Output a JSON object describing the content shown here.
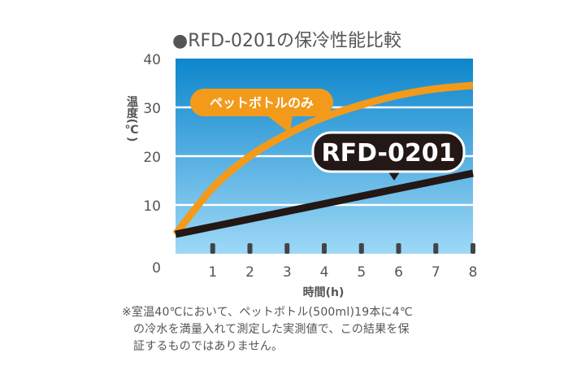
{
  "chart_data": {
    "type": "line",
    "title": "●RFD-0201の保冷性能比較",
    "xlabel": "時間(h)",
    "ylabel": "温度(℃)",
    "xlim": [
      0,
      8
    ],
    "ylim": [
      0,
      40
    ],
    "x_ticks": [
      "1",
      "2",
      "3",
      "4",
      "5",
      "6",
      "7",
      "8"
    ],
    "y_ticks": [
      "0",
      "10",
      "20",
      "30",
      "40"
    ],
    "grid": true,
    "series": [
      {
        "name": "ペットボトルのみ",
        "color": "#F39A1B",
        "x": [
          0,
          1,
          2,
          3,
          4,
          5,
          6,
          7,
          8
        ],
        "y": [
          4,
          13.5,
          20,
          24.5,
          28,
          30.5,
          32.5,
          33.8,
          34.5
        ]
      },
      {
        "name": "RFD-0201",
        "color": "#231815",
        "x": [
          0,
          8
        ],
        "y": [
          4,
          16.5
        ]
      }
    ],
    "colors": {
      "plot_top": "#0D86CC",
      "plot_bottom": "#9ED8F6",
      "gridline": "#FFFFFF"
    }
  },
  "note": {
    "line1": "※室温40℃において、ペットボトル(500ml)19本に4℃",
    "line2": "の冷水を満量入れて測定した実測値で、この結果を保",
    "line3": "証するものではありません。"
  }
}
